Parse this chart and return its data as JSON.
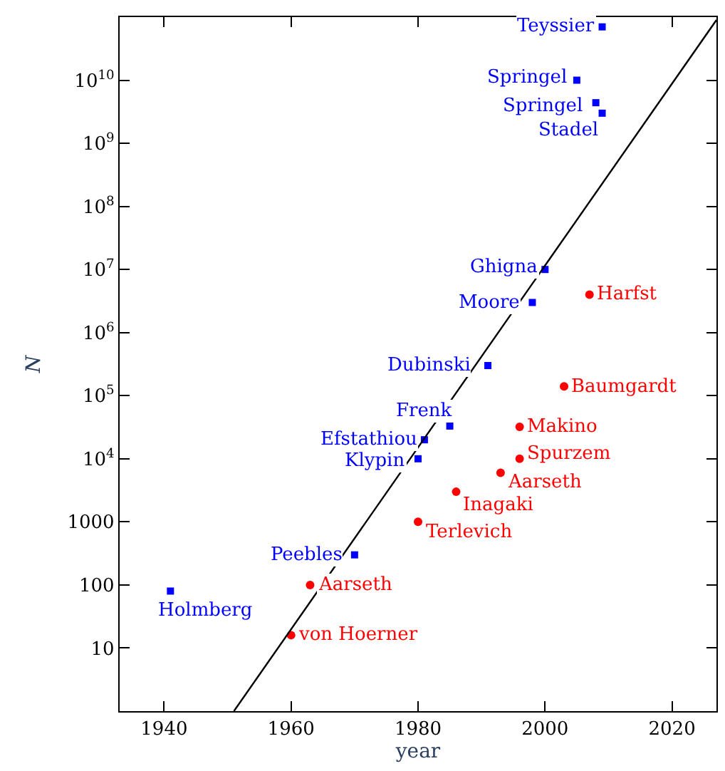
{
  "chart_data": {
    "type": "scatter",
    "xlabel": "year",
    "ylabel": "N",
    "log": "y",
    "xlim": [
      1933,
      2027
    ],
    "xticks": [
      1940,
      1960,
      1980,
      2000,
      2020
    ],
    "ylim": [
      1,
      100000000000.0
    ],
    "yticks": [
      {
        "value": 10,
        "label": "10"
      },
      {
        "value": 100,
        "label": "100"
      },
      {
        "value": 1000,
        "label": "1000"
      },
      {
        "value": 10000,
        "label": "10$^{4}$"
      },
      {
        "value": 100000,
        "label": "10$^{5}$"
      },
      {
        "value": 1000000,
        "label": "10$^{6}$"
      },
      {
        "value": 10000000,
        "label": "10$^{7}$"
      },
      {
        "value": 100000000,
        "label": "10$^{8}$"
      },
      {
        "value": 1000000000,
        "label": "10$^{9}$"
      },
      {
        "value": 10000000000,
        "label": "10$^{10}$"
      }
    ],
    "legend": false,
    "series": [
      {
        "marker": "square",
        "color": "#0000ff",
        "x": [
          1941,
          1970,
          1980,
          1981,
          1985,
          1991,
          1998,
          2000,
          2005,
          2008,
          2009,
          2009
        ],
        "values": [
          80,
          300,
          10000,
          20000,
          33000,
          300000,
          3000000,
          10000000,
          10000000000,
          4400000000,
          3000000000,
          70000000000
        ]
      },
      {
        "marker": "circle",
        "color": "#ff0000",
        "x": [
          1960,
          1963,
          1980,
          1986,
          1993,
          1996,
          1996,
          2003,
          2007
        ],
        "values": [
          16,
          100,
          1000,
          3000,
          6000,
          10000,
          32000,
          140000,
          4000000
        ]
      },
      {
        "type": "line",
        "color": "#000000",
        "marker": "none",
        "x": [
          1951,
          2027
        ],
        "values": [
          1,
          90000000000
        ]
      }
    ],
    "annotations": [
      {
        "text": "Holmberg",
        "x": 1941,
        "y": 80
      },
      {
        "text": "Peebles",
        "x": 1970,
        "y": 300
      },
      {
        "text": "Klypin",
        "x": 1980,
        "y": 10000
      },
      {
        "text": "Efstathiou",
        "x": 1981,
        "y": 20000
      },
      {
        "text": "Frenk",
        "x": 1985,
        "y": 33000
      },
      {
        "text": "Dubinski",
        "x": 1991,
        "y": 300000
      },
      {
        "text": "Moore",
        "x": 1998,
        "y": 3000000
      },
      {
        "text": "Ghigna",
        "x": 2000,
        "y": 10000000
      },
      {
        "text": "Springel",
        "x": 2005,
        "y": 10000000000
      },
      {
        "text": "Springel",
        "x": 2008,
        "y": 4400000000
      },
      {
        "text": "Stadel",
        "x": 2009,
        "y": 3000000000
      },
      {
        "text": "Teyssier",
        "x": 2009,
        "y": 70000000000
      },
      {
        "text": "von Hoerner",
        "x": 1960,
        "y": 16
      },
      {
        "text": "Aarseth",
        "x": 1963,
        "y": 100
      },
      {
        "text": "Terlevich",
        "x": 1980,
        "y": 1000
      },
      {
        "text": "Inagaki",
        "x": 1986,
        "y": 3000
      },
      {
        "text": "Aarseth",
        "x": 1993,
        "y": 6000
      },
      {
        "text": "Spurzem",
        "x": 1996,
        "y": 10000
      },
      {
        "text": "Makino",
        "x": 1996,
        "y": 32000
      },
      {
        "text": "Baumgardt",
        "x": 2003,
        "y": 140000
      },
      {
        "text": "Harfst",
        "x": 2007,
        "y": 4000000
      }
    ]
  }
}
